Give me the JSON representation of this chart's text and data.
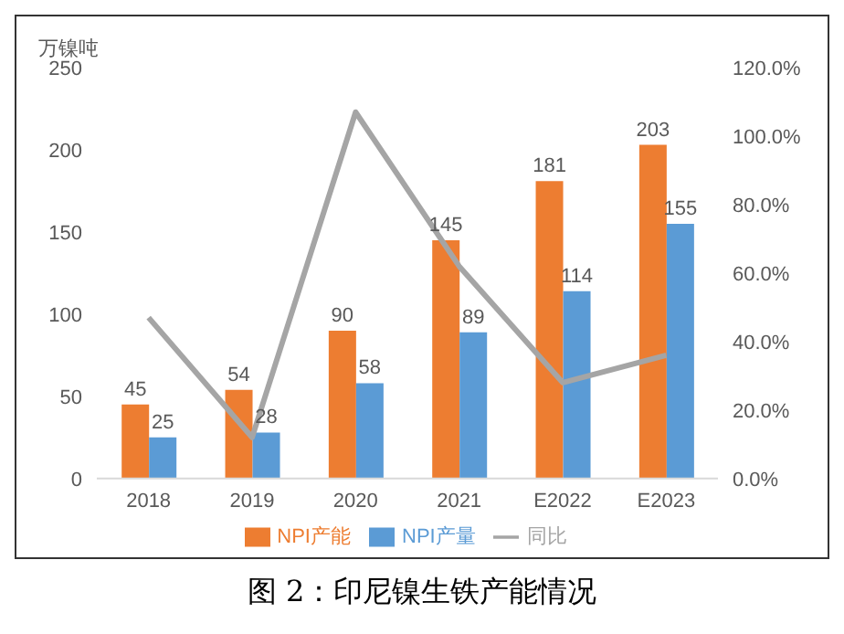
{
  "chart_data": {
    "type": "bar",
    "title": "图 2：印尼镍生铁产能情况",
    "ylabel": "万镍吨",
    "categories": [
      "2018",
      "2019",
      "2020",
      "2021",
      "E2022",
      "E2023"
    ],
    "series": [
      {
        "name": "NPI产能",
        "color": "#ed7d31",
        "values": [
          45,
          54,
          90,
          145,
          181,
          203
        ],
        "value_labels": [
          "45",
          "54",
          "90",
          "145",
          "181",
          "203"
        ]
      },
      {
        "name": "NPI产量",
        "color": "#5b9bd5",
        "values": [
          25,
          28,
          58,
          89,
          114,
          155
        ],
        "value_labels": [
          "25",
          "28",
          "58",
          "89",
          "114",
          "155"
        ]
      },
      {
        "name": "同比",
        "type": "line",
        "axis": "y2",
        "color": "#a5a5a5",
        "values": [
          47,
          12,
          107,
          62,
          28,
          36
        ]
      }
    ],
    "ylim": [
      0,
      250
    ],
    "yticks": [
      0,
      50,
      100,
      150,
      200,
      250
    ],
    "y2lim": [
      0,
      120
    ],
    "y2ticks": [
      {
        "value": 0,
        "label": "0.0%"
      },
      {
        "value": 20,
        "label": "20.0%"
      },
      {
        "value": 40,
        "label": "40.0%"
      },
      {
        "value": 60,
        "label": "60.0%"
      },
      {
        "value": 80,
        "label": "80.0%"
      },
      {
        "value": 100,
        "label": "100.0%"
      },
      {
        "value": 120,
        "label": "120.0%"
      }
    ],
    "grid": false,
    "legend": "bottom",
    "marker": "none"
  }
}
